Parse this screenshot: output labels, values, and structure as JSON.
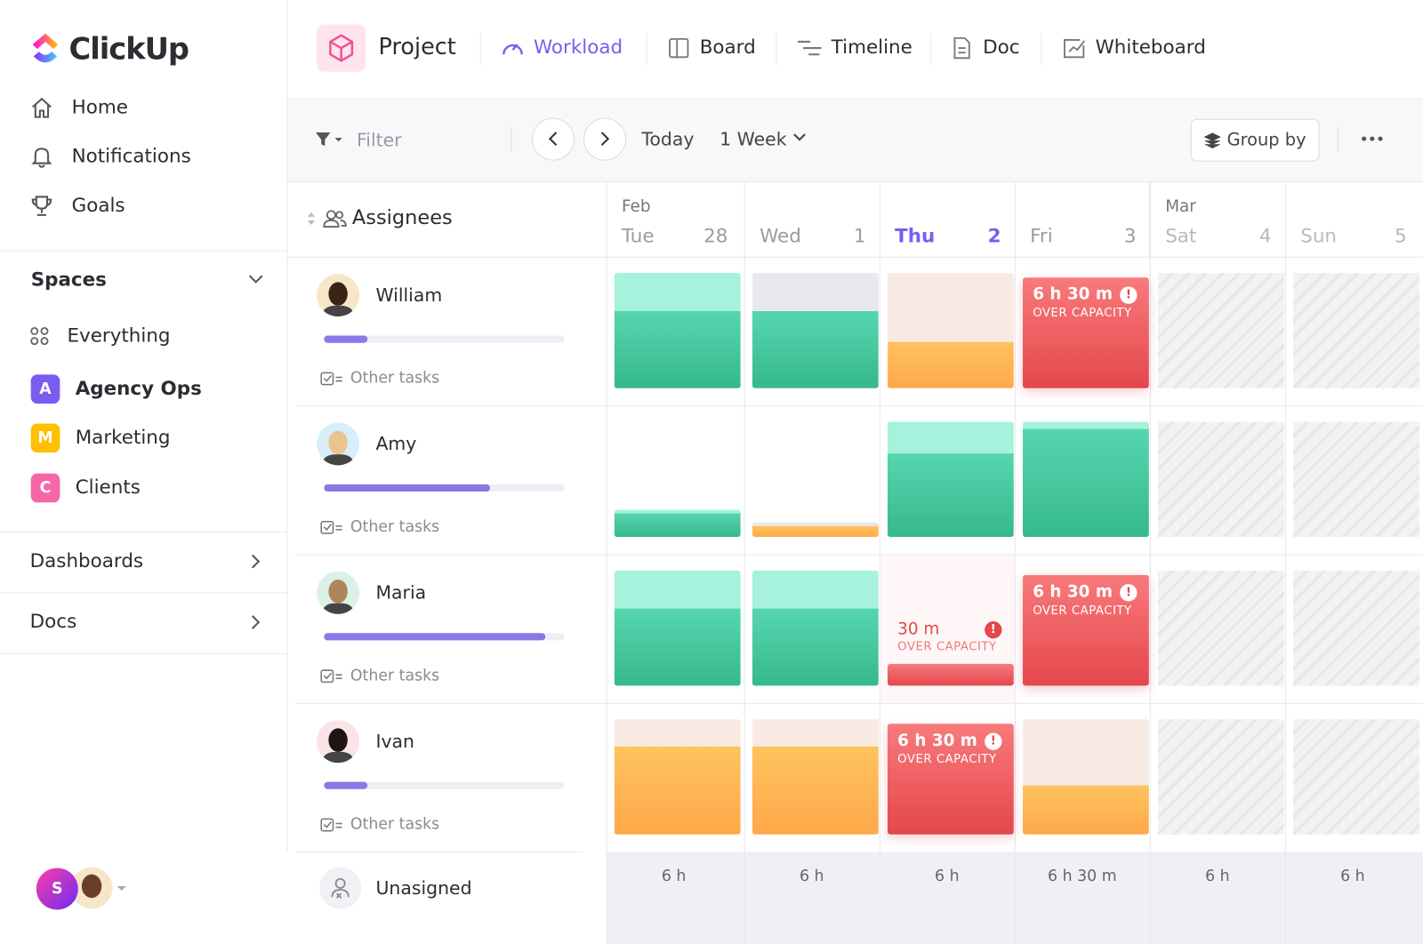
{
  "sidebar": {
    "logo": "ClickUp",
    "nav": [
      "Home",
      "Notifications",
      "Goals"
    ],
    "spaces_title": "Spaces",
    "spaces": [
      {
        "label": "Everything"
      },
      {
        "badge": "A",
        "label": "Agency Ops"
      },
      {
        "badge": "M",
        "label": "Marketing"
      },
      {
        "badge": "C",
        "label": "Clients"
      }
    ],
    "sections": [
      "Dashboards",
      "Docs"
    ],
    "user_badge": "S"
  },
  "header": {
    "project": "Project",
    "tabs": [
      "Workload",
      "Board",
      "Timeline",
      "Doc",
      "Whiteboard"
    ]
  },
  "toolbar": {
    "filter": "Filter",
    "today": "Today",
    "range": "1 Week",
    "group_by": "Group by"
  },
  "grid": {
    "assignees_label": "Assignees",
    "months": [
      "Feb",
      "Mar"
    ],
    "days": [
      {
        "name": "Tue",
        "date": "28"
      },
      {
        "name": "Wed",
        "date": "1"
      },
      {
        "name": "Thu",
        "date": "2"
      },
      {
        "name": "Fri",
        "date": "3"
      },
      {
        "name": "Sat",
        "date": "4"
      },
      {
        "name": "Sun",
        "date": "5"
      }
    ],
    "rows": [
      {
        "name": "William",
        "other": "Other tasks",
        "cells": [
          null,
          null,
          null,
          {
            "amount": "6 h 30 m",
            "status": "OVER CAPACITY"
          },
          null,
          null
        ]
      },
      {
        "name": "Amy",
        "other": "Other tasks",
        "cells": [
          null,
          null,
          null,
          null,
          null,
          null
        ]
      },
      {
        "name": "Maria",
        "other": "Other tasks",
        "cells": [
          null,
          null,
          {
            "amount": "30 m",
            "status": "OVER CAPACITY"
          },
          {
            "amount": "6 h 30 m",
            "status": "OVER CAPACITY"
          },
          null,
          null
        ]
      },
      {
        "name": "Ivan",
        "other": "Other tasks",
        "cells": [
          null,
          null,
          {
            "amount": "6 h 30 m",
            "status": "OVER CAPACITY"
          },
          null,
          null,
          null
        ]
      }
    ],
    "unassigned": "Unasigned",
    "totals": [
      "6 h",
      "6 h",
      "6 h",
      "6 h 30 m",
      "6 h",
      "6 h"
    ]
  }
}
